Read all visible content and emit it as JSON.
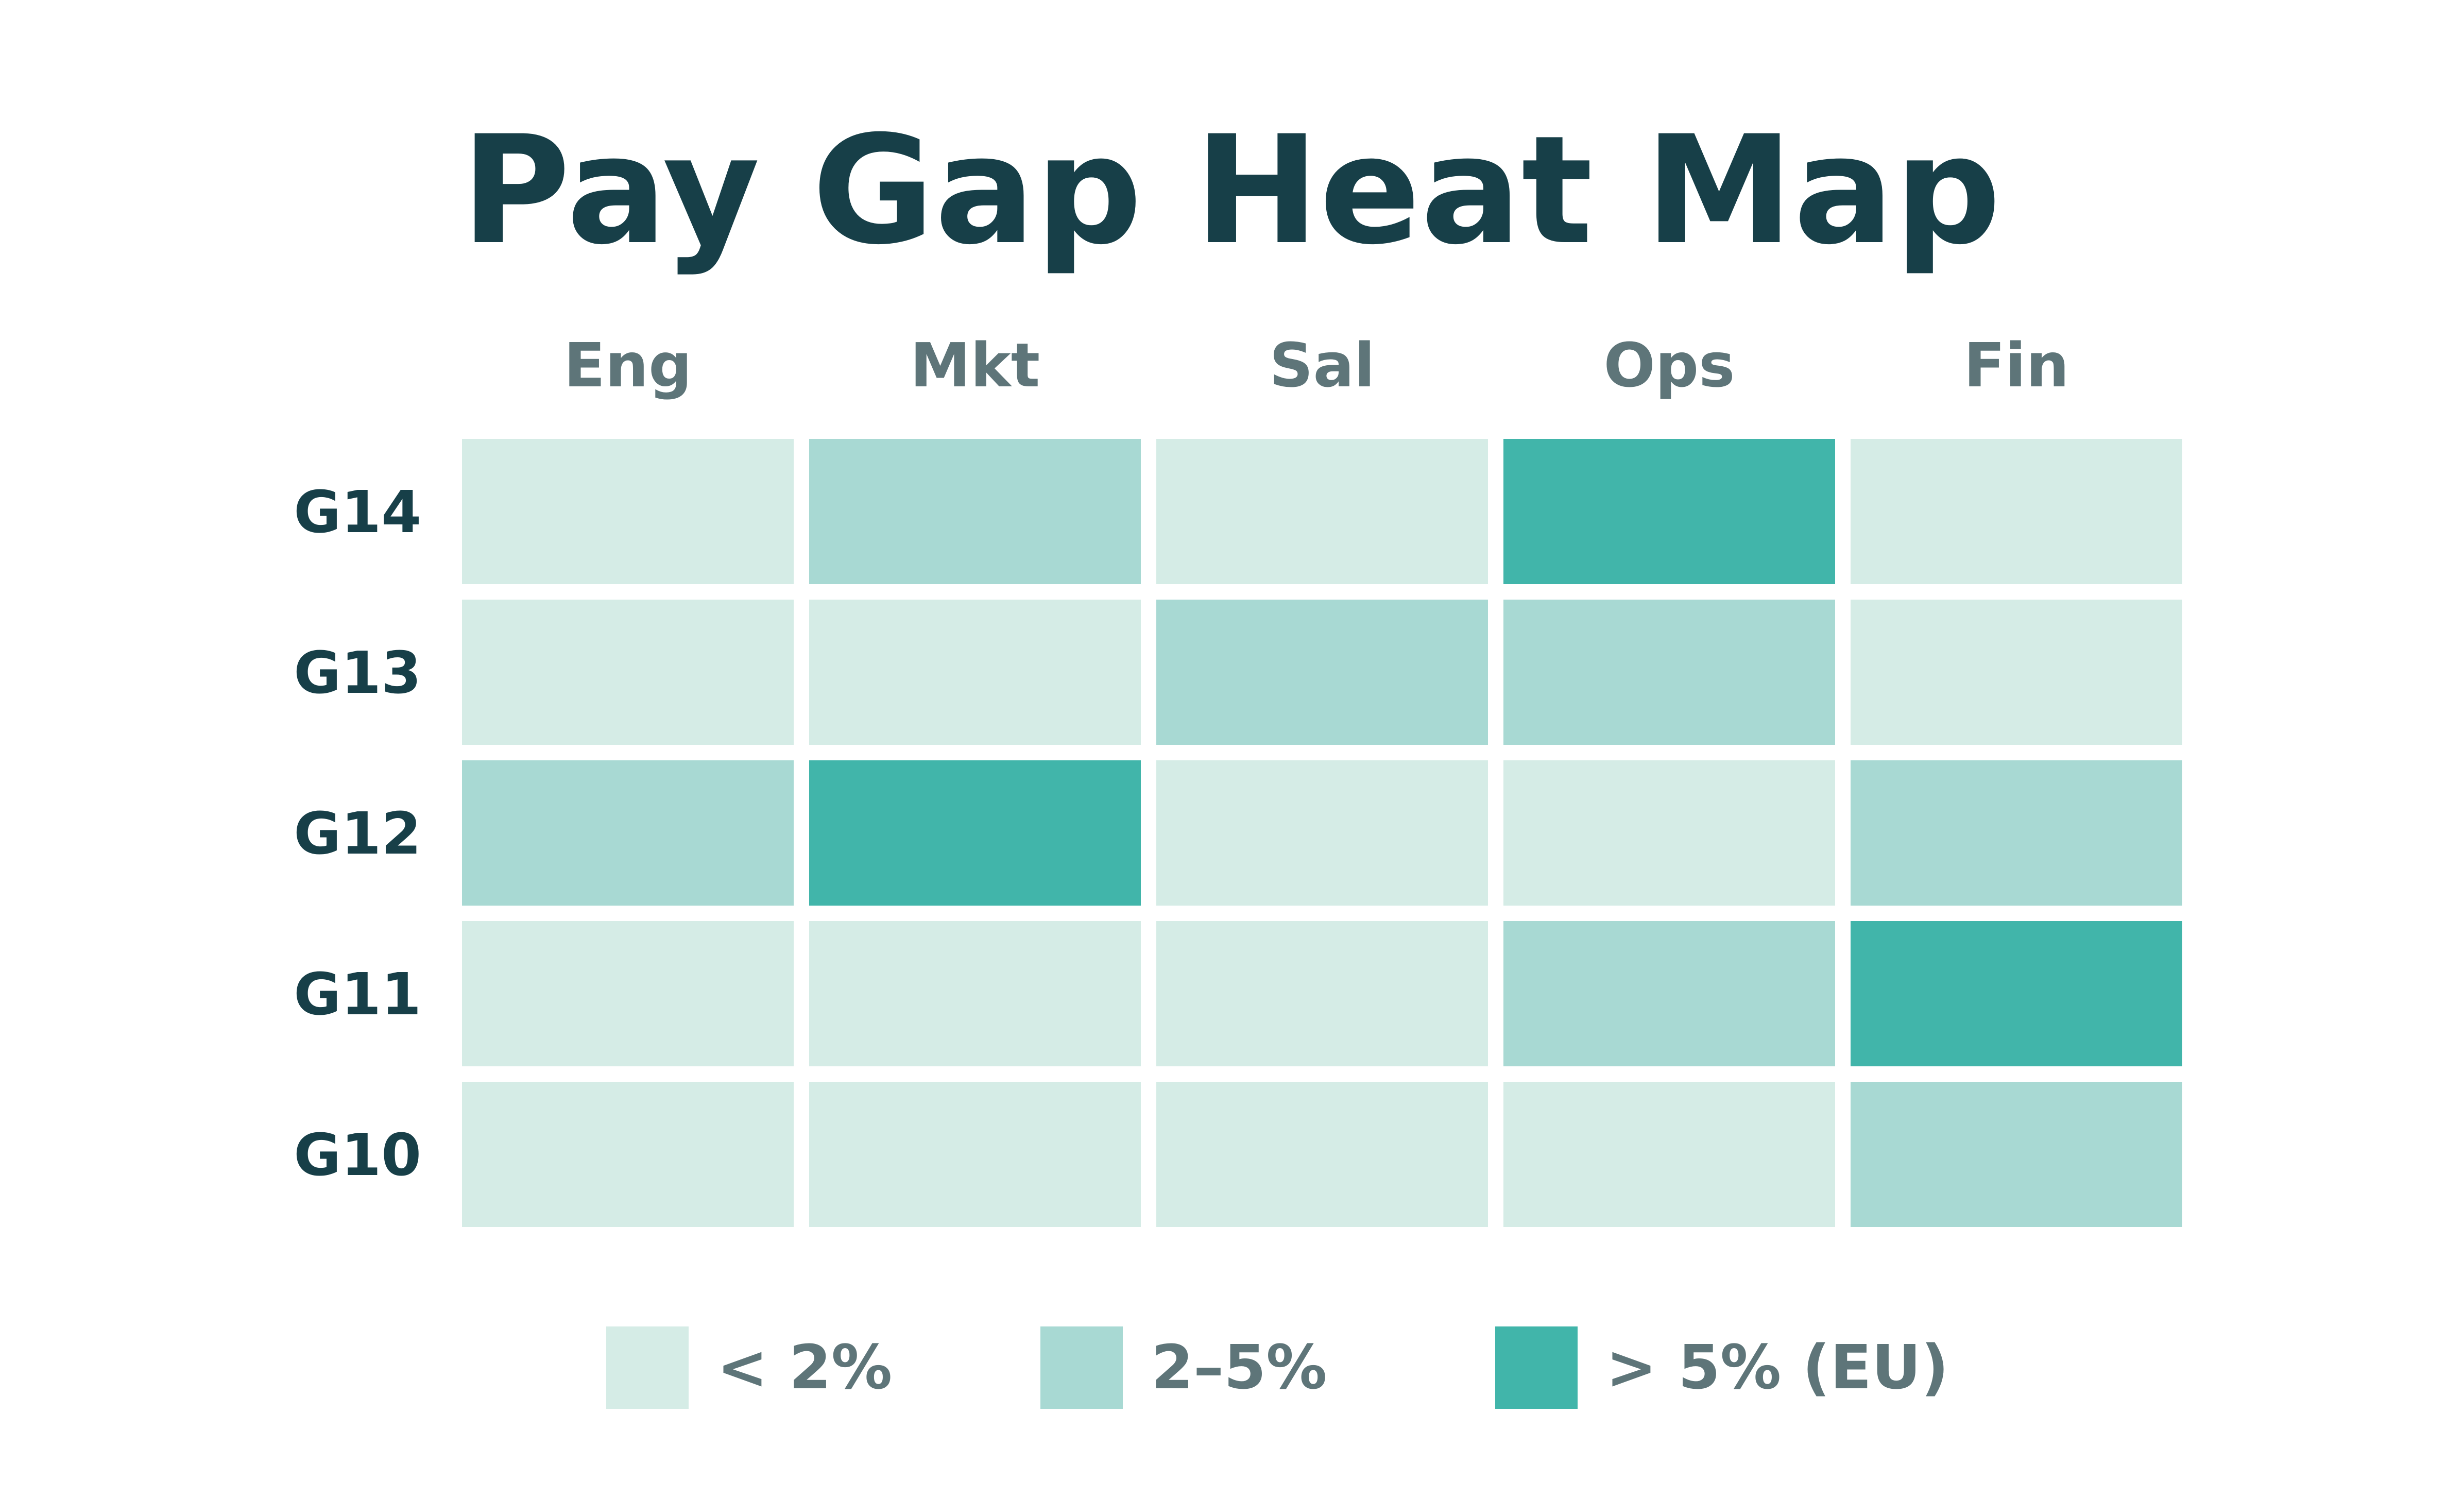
{
  "chart_data": {
    "type": "heatmap",
    "title": "Pay Gap Heat Map",
    "columns": [
      "Eng",
      "Mkt",
      "Sal",
      "Ops",
      "Fin"
    ],
    "rows": [
      "G14",
      "G13",
      "G12",
      "G11",
      "G10"
    ],
    "levels": [
      {
        "label": "< 2%",
        "color": "#d5ece6"
      },
      {
        "label": "2–5%",
        "color": "#a8d9d3"
      },
      {
        "label": "> 5% (EU)",
        "color": "#41b5aa"
      }
    ],
    "cells": [
      [
        0,
        1,
        0,
        2,
        0
      ],
      [
        0,
        0,
        1,
        1,
        0
      ],
      [
        1,
        2,
        0,
        0,
        1
      ],
      [
        0,
        0,
        0,
        1,
        2
      ],
      [
        0,
        0,
        0,
        0,
        1
      ]
    ],
    "legend_position": "bottom",
    "grid": false
  }
}
